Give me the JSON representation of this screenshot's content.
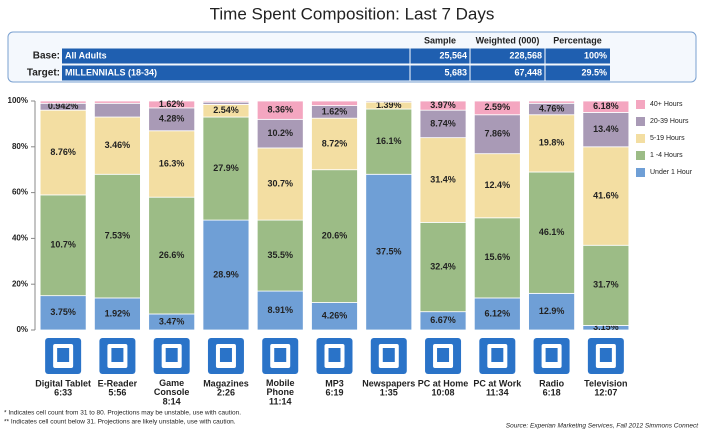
{
  "chart_data": {
    "type": "stacked_bar",
    "title": "Time Spent Composition: Last 7 Days",
    "categories": [
      "Digital Tablet",
      "E-Reader",
      "Game Console",
      "Magazines",
      "Mobile Phone",
      "MP3",
      "Newspapers",
      "PC at Home",
      "PC at Work",
      "Radio",
      "Television"
    ],
    "times": [
      "6:33",
      "5:56",
      "8:14",
      "2:26",
      "11:14",
      "6:19",
      "1:35",
      "10:08",
      "11:34",
      "6:18",
      "12:07"
    ],
    "series": [
      {
        "name": "Under 1 Hour",
        "color": "#6f9fd6",
        "values": [
          15,
          14,
          7,
          48,
          17,
          12,
          68,
          8,
          14,
          16,
          2
        ],
        "labels": [
          "3.75%",
          "1.92%",
          "3.47%",
          "28.9%",
          "8.91%",
          "4.26%",
          "37.5%",
          "6.67%",
          "6.12%",
          "12.9%",
          "3.15%"
        ]
      },
      {
        "name": "1 -4 Hours",
        "color": "#9cbc86",
        "values": [
          44,
          54,
          51,
          45,
          31,
          58,
          28.5,
          39,
          35,
          53,
          35
        ],
        "labels": [
          "10.7%",
          "7.53%",
          "26.6%",
          "27.9%",
          "35.5%",
          "20.6%",
          "16.1%",
          "32.4%",
          "15.6%",
          "46.1%",
          "31.7%"
        ]
      },
      {
        "name": "5-19 Hours",
        "color": "#f3dea2",
        "values": [
          37,
          25,
          29,
          5.5,
          31.5,
          22.5,
          3,
          37,
          28,
          25,
          43
        ],
        "labels": [
          "8.76%",
          "3.46%",
          "16.3%",
          "2.54%",
          "30.7%",
          "8.72%",
          "1.39%",
          "31.4%",
          "12.4%",
          "19.8%",
          "41.6%"
        ]
      },
      {
        "name": "20-39 Hours",
        "color": "#a99ab6",
        "values": [
          3,
          6,
          10,
          1,
          12.5,
          5.5,
          0.5,
          12,
          17,
          5,
          15
        ],
        "labels": [
          "0.942%",
          null,
          "4.28%",
          null,
          "10.2%",
          "1.62%",
          null,
          "8.74%",
          "7.86%",
          "4.76%",
          "13.4%"
        ]
      },
      {
        "name": "40+ Hours",
        "color": "#f4a6c0",
        "values": [
          1,
          1,
          3,
          0.5,
          8,
          2,
          0,
          4,
          6,
          1,
          5
        ],
        "labels": [
          null,
          null,
          "1.62%",
          null,
          "8.36%",
          null,
          null,
          "3.97%",
          "2.59%",
          null,
          "6.18%"
        ]
      }
    ],
    "ylim": [
      0,
      100
    ],
    "yticks": [
      {
        "value": 0,
        "label": "0%"
      },
      {
        "value": 20,
        "label": "20%"
      },
      {
        "value": 40,
        "label": "40%"
      },
      {
        "value": 60,
        "label": "60%"
      },
      {
        "value": 80,
        "label": "80%"
      },
      {
        "value": 100,
        "label": "100%"
      }
    ],
    "legend": "right",
    "notes": [
      "* Indicates cell count from 31 to 80. Projections may be unstable, use with caution.",
      "** Indicates cell count below 31. Projections are likely unstable, use with caution."
    ],
    "source": "Source: Experian Marketing Services, Fall 2012 Simmons Connect"
  },
  "table": {
    "header": [
      "Sample",
      "Weighted (000)",
      "Percentage"
    ],
    "rows": [
      [
        "Base:",
        "All Adults",
        "25,564",
        "228,568",
        "100%"
      ],
      [
        "Target:",
        "MILLENNIALS (18-34)",
        "5,683",
        "67,448",
        "29.5%"
      ]
    ]
  }
}
